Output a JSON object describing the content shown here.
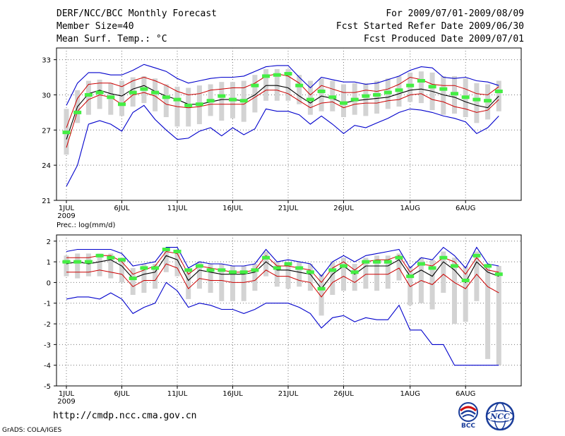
{
  "header": {
    "title": "DERF/NCC/BCC Monthly Forecast",
    "member_size": "Member Size=40",
    "variable": "Mean Surf. Temp.: °C",
    "period": "For 2009/07/01-2009/08/09",
    "started": "Fcst Started Refer Date 2009/06/30",
    "produced": "Fcst Produced Date 2009/07/01"
  },
  "footer": {
    "url": "http://cmdp.ncc.cma.gov.cn",
    "credit": "GrADS: COLA/IGES",
    "logo_left_text": "BCC",
    "logo_right_text": "NCC"
  },
  "colors": {
    "max_min": "#0000cc",
    "spread": "#cc0000",
    "mean": "#000000",
    "median": "#44ee44",
    "box": "#d3d3d3"
  },
  "chart_data": [
    {
      "type": "line",
      "name": "temperature",
      "title": "Mean Surf. Temp.: °C",
      "ylim": [
        21,
        34
      ],
      "yticks": [
        21,
        24,
        27,
        30,
        33
      ],
      "xtick_labels": [
        "1JUL\n2009",
        "6JUL",
        "11JUL",
        "16JUL",
        "21JUL",
        "26JUL",
        "1AUG",
        "6AUG"
      ],
      "xtick_days": [
        1,
        6,
        11,
        16,
        21,
        26,
        32,
        37
      ],
      "days": 40,
      "series": [
        {
          "name": "max",
          "values": [
            29.1,
            31,
            31.9,
            31.9,
            31.7,
            31.7,
            32.1,
            32.6,
            32.3,
            32,
            31.4,
            31,
            31.2,
            31.4,
            31.5,
            31.5,
            31.6,
            32,
            32.4,
            32.5,
            32.5,
            31.5,
            30.6,
            31.5,
            31.3,
            31.1,
            31.1,
            30.9,
            31,
            31.3,
            31.6,
            32.1,
            32.4,
            32.3,
            31.5,
            31.4,
            31.5,
            31.2,
            31.1,
            30.8
          ]
        },
        {
          "name": "upper",
          "values": [
            27.2,
            29.7,
            30.9,
            31,
            31,
            30.7,
            31.2,
            31.5,
            31.2,
            30.8,
            30.3,
            30,
            30.1,
            30.4,
            30.5,
            30.6,
            30.6,
            31,
            31.6,
            31.8,
            31.6,
            31,
            30,
            30.8,
            30.5,
            30.2,
            30.2,
            30.4,
            30.3,
            30.5,
            30.9,
            31.5,
            31.3,
            30.9,
            30.8,
            30.8,
            30.5,
            30.1,
            30,
            30.7
          ]
        },
        {
          "name": "mean",
          "values": [
            26.2,
            29,
            30.1,
            30.4,
            30.1,
            29.9,
            30.5,
            30.8,
            30.3,
            29.9,
            29.6,
            29.2,
            29.2,
            29.4,
            29.6,
            29.6,
            29.5,
            30,
            30.8,
            30.8,
            30.6,
            29.9,
            29.3,
            29.9,
            29.7,
            29.3,
            29.5,
            29.6,
            29.7,
            29.8,
            30.1,
            30.4,
            30.5,
            30.3,
            30,
            29.8,
            29.4,
            29.1,
            28.9,
            29.9
          ]
        },
        {
          "name": "lower",
          "values": [
            25.5,
            28.6,
            29.6,
            30,
            29.8,
            29.2,
            30,
            30.2,
            29.9,
            29.2,
            29,
            28.9,
            29,
            29.2,
            29.2,
            29.2,
            29.2,
            29.8,
            30.4,
            30.4,
            30.1,
            29.5,
            28.9,
            29.3,
            29.4,
            28.9,
            29.2,
            29.3,
            29.3,
            29.5,
            29.6,
            30,
            30.1,
            29.6,
            29.4,
            29,
            28.8,
            28.5,
            28.7,
            29.6
          ]
        },
        {
          "name": "min",
          "values": [
            22.2,
            24,
            27.5,
            27.8,
            27.5,
            26.9,
            28.5,
            29.1,
            27.9,
            27,
            26.2,
            26.3,
            26.9,
            27.2,
            26.5,
            27.2,
            26.6,
            27.1,
            28.8,
            28.6,
            28.6,
            28.3,
            27.5,
            28.2,
            27.5,
            26.7,
            27.4,
            27.2,
            27.6,
            28,
            28.5,
            28.8,
            28.7,
            28.5,
            28.2,
            28,
            27.7,
            26.7,
            27.2,
            28.2
          ]
        },
        {
          "name": "median",
          "values": [
            26.8,
            28.5,
            30,
            30.2,
            29.8,
            29.2,
            30.2,
            30.5,
            30.2,
            29.8,
            29.6,
            29.1,
            29.2,
            29.5,
            29.9,
            29.6,
            29.5,
            30.8,
            31.6,
            31.7,
            31.8,
            30.8,
            29.6,
            30.3,
            29.8,
            29.3,
            29.6,
            29.9,
            30,
            30.2,
            30.4,
            30.8,
            31.2,
            30.7,
            30.5,
            30.1,
            29.8,
            29.6,
            29.5,
            30.3
          ]
        },
        {
          "name": "box_high",
          "values": [
            28.8,
            30.4,
            31.2,
            31.3,
            31,
            31.2,
            31.5,
            31.6,
            31.4,
            30.9,
            30.7,
            30.6,
            30.8,
            30.9,
            31.1,
            31.1,
            31.2,
            31.7,
            32.2,
            32.2,
            32.2,
            31.7,
            31.2,
            31.4,
            31.2,
            30.9,
            31,
            31,
            31.2,
            31.4,
            31.6,
            31.9,
            32,
            31.9,
            31.6,
            31.6,
            31.4,
            31,
            30.9,
            31.2
          ]
        },
        {
          "name": "box_low",
          "values": [
            24.9,
            27.6,
            28.3,
            28.8,
            28.3,
            28.2,
            29,
            29.3,
            28.6,
            28.1,
            27.3,
            27.3,
            27.5,
            28.2,
            27.8,
            28,
            27.7,
            28.5,
            29.5,
            29.5,
            29.5,
            29.2,
            28.3,
            28.6,
            28.6,
            28.1,
            28.3,
            28.2,
            28.4,
            28.8,
            29,
            29.4,
            29.3,
            28.7,
            28.3,
            28.4,
            28.1,
            27.6,
            27.9,
            28.6
          ]
        }
      ]
    },
    {
      "type": "line",
      "name": "precipitation",
      "title": "Prec.: log(mm/d)",
      "ylim": [
        -5,
        2.3
      ],
      "yticks": [
        -5,
        -4,
        -3,
        -2,
        -1,
        0,
        1,
        2
      ],
      "xtick_labels": [
        "1JUL\n2009",
        "6JUL",
        "11JUL",
        "16JUL",
        "21JUL",
        "26JUL",
        "1AUG",
        "6AUG"
      ],
      "xtick_days": [
        1,
        6,
        11,
        16,
        21,
        26,
        32,
        37
      ],
      "days": 40,
      "series": [
        {
          "name": "max",
          "values": [
            1.5,
            1.6,
            1.6,
            1.6,
            1.6,
            1.4,
            0.8,
            0.9,
            1,
            1.7,
            1.7,
            0.7,
            1,
            0.9,
            0.9,
            0.8,
            0.8,
            0.9,
            1.6,
            1,
            1.1,
            1,
            0.9,
            0.3,
            1,
            1.3,
            1,
            1.3,
            1.4,
            1.5,
            1.6,
            0.7,
            1.2,
            1.1,
            1.7,
            1.3,
            0.7,
            1.7,
            0.9,
            0.8
          ]
        },
        {
          "name": "upper",
          "values": [
            1.2,
            1.2,
            1.2,
            1.3,
            1.3,
            1,
            0.4,
            0.6,
            0.8,
            1.5,
            1.4,
            0.4,
            0.8,
            0.7,
            0.6,
            0.5,
            0.5,
            0.6,
            1.3,
            0.8,
            0.8,
            0.7,
            0.6,
            0,
            0.7,
            1,
            0.6,
            1,
            1.1,
            1.1,
            1.3,
            0.5,
            0.9,
            0.8,
            1.2,
            1,
            0.4,
            1.2,
            0.6,
            0.5
          ]
        },
        {
          "name": "mean",
          "values": [
            0.9,
            1,
            0.9,
            1,
            1.1,
            0.8,
            0.2,
            0.4,
            0.5,
            1.3,
            1.1,
            0.1,
            0.6,
            0.5,
            0.4,
            0.4,
            0.4,
            0.5,
            1,
            0.6,
            0.6,
            0.5,
            0.4,
            -0.3,
            0.4,
            0.8,
            0.4,
            0.8,
            0.8,
            0.8,
            1.1,
            0.3,
            0.6,
            0.3,
            1,
            0.6,
            0,
            1,
            0.5,
            0.3
          ]
        },
        {
          "name": "lower",
          "values": [
            0.5,
            0.5,
            0.5,
            0.6,
            0.5,
            0.4,
            -0.2,
            0.1,
            0.1,
            0.9,
            0.7,
            -0.3,
            0.2,
            0.1,
            0.1,
            0,
            0,
            0.1,
            0.6,
            0.3,
            0.3,
            0.1,
            0,
            -0.7,
            0,
            0.3,
            0,
            0.4,
            0.4,
            0.4,
            0.7,
            -0.2,
            0.1,
            -0.1,
            0.4,
            0,
            -0.3,
            0.4,
            -0.2,
            -0.5
          ]
        },
        {
          "name": "min",
          "values": [
            -0.8,
            -0.7,
            -0.7,
            -0.8,
            -0.5,
            -0.8,
            -1.5,
            -1.2,
            -1,
            0,
            -0.4,
            -1.2,
            -1,
            -1.1,
            -1.3,
            -1.3,
            -1.5,
            -1.3,
            -1,
            -1,
            -1,
            -1.2,
            -1.5,
            -2.2,
            -1.7,
            -1.6,
            -1.9,
            -1.7,
            -1.8,
            -1.8,
            -1.1,
            -2.3,
            -2.3,
            -3,
            -3,
            -4,
            -4,
            -4,
            -4,
            -4
          ]
        },
        {
          "name": "median",
          "values": [
            1,
            1,
            1,
            1.3,
            1.2,
            1.1,
            0.2,
            0.7,
            0.7,
            1.6,
            1.5,
            0.6,
            0.8,
            0.6,
            0.6,
            0.5,
            0.5,
            0.6,
            1.2,
            0.7,
            0.9,
            0.7,
            0.5,
            -0.3,
            0.6,
            0.8,
            0.5,
            1,
            1,
            1,
            1.2,
            0.3,
            0.9,
            0.7,
            1.2,
            0.8,
            0.1,
            1.3,
            0.8,
            0.4
          ]
        },
        {
          "name": "box_high",
          "values": [
            1.3,
            1.4,
            1.4,
            1.4,
            1.4,
            1.2,
            0.7,
            0.9,
            0.9,
            1.6,
            1.5,
            0.6,
            1,
            0.9,
            0.9,
            0.8,
            0.8,
            0.9,
            1.5,
            1,
            1,
            1,
            0.9,
            0.4,
            1,
            1.2,
            0.9,
            1.2,
            1.3,
            1.3,
            1.4,
            0.8,
            1.2,
            1.1,
            1.5,
            1.2,
            0.8,
            1.5,
            0.9,
            0.8
          ]
        },
        {
          "name": "box_low",
          "values": [
            0.3,
            0.2,
            0.3,
            0.3,
            0.2,
            0,
            -0.6,
            -0.5,
            -0.3,
            0.5,
            0.3,
            -0.8,
            -0.3,
            -0.5,
            -0.9,
            -0.9,
            -0.9,
            -0.4,
            0.3,
            -0.2,
            -0.3,
            -0.2,
            -0.4,
            -1.6,
            -0.6,
            -0.4,
            -0.4,
            -0.3,
            -0.4,
            -0.3,
            0.1,
            -1.1,
            -1,
            -1.3,
            -0.5,
            -2,
            -1.9,
            -0.9,
            -3.7,
            -4
          ]
        }
      ]
    }
  ]
}
